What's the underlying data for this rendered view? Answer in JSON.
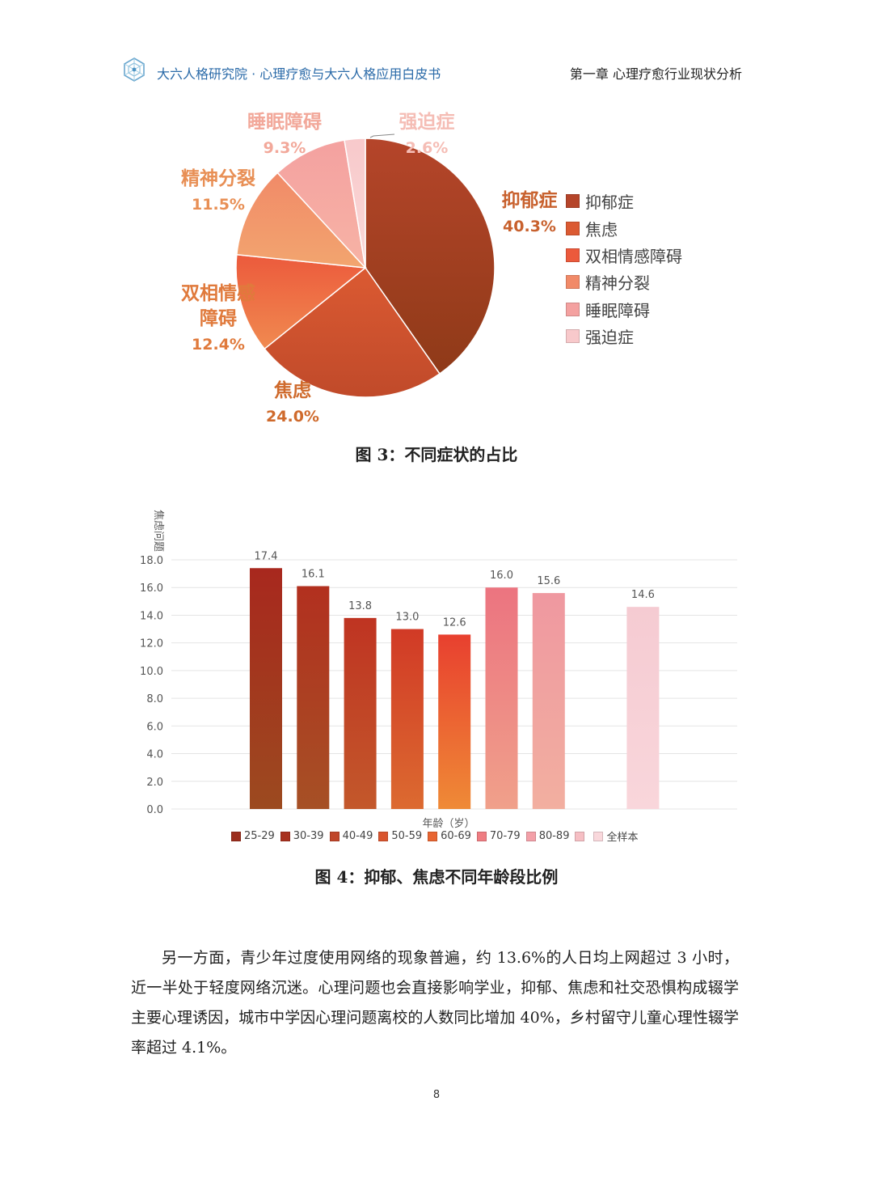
{
  "header": {
    "org_title": "大六人格研究院 · 心理疗愈与大六人格应用白皮书",
    "chapter_title": "第一章  心理疗愈行业现状分析",
    "logo_icon": "hexagon-network-logo-icon"
  },
  "pie_caption": "图 3：不同症状的占比",
  "bar_caption": "图 4：抑郁、焦虑不同年龄段比例",
  "body_paragraph": "另一方面，青少年过度使用网络的现象普遍，约 13.6%的人日均上网超过 3 小时，近一半处于轻度网络沉迷。心理问题也会直接影响学业，抑郁、焦虑和社交恐惧构成辍学主要心理诱因，城市中学因心理问题离校的人数同比增加 40%，乡村留守儿童心理性辍学率超过 4.1%。",
  "page_number": "8",
  "chart_data": [
    {
      "type": "pie",
      "title": "",
      "legend_position": "right",
      "slices": [
        {
          "name": "抑郁症",
          "label_lines": [
            "抑郁症"
          ],
          "value": 40.3,
          "pct_label": "40.3%",
          "color": "#b5452a",
          "color_dark": "#8f3a18",
          "label_color": "#c8612e"
        },
        {
          "name": "焦虑",
          "label_lines": [
            "焦虑"
          ],
          "value": 24.0,
          "pct_label": "24.0%",
          "color": "#db5a32",
          "color_dark": "#c04a2a",
          "label_color": "#cf6a2c"
        },
        {
          "name": "双相情感障碍",
          "label_lines": [
            "双相情感",
            "障碍"
          ],
          "value": 12.4,
          "pct_label": "12.4%",
          "color": "#ec5a3c",
          "color_dark": "#f08a50",
          "label_color": "#e07a3c"
        },
        {
          "name": "精神分裂",
          "label_lines": [
            "精神分裂"
          ],
          "value": 11.5,
          "pct_label": "11.5%",
          "color": "#f18a68",
          "color_dark": "#f2a56f",
          "label_color": "#e88f55"
        },
        {
          "name": "睡眠障碍",
          "label_lines": [
            "睡眠障碍"
          ],
          "value": 9.3,
          "pct_label": "9.3%",
          "color": "#f4a1a0",
          "color_dark": "#f7b3a5",
          "label_color": "#f2a89a"
        },
        {
          "name": "强迫症",
          "label_lines": [
            "强迫症"
          ],
          "value": 2.6,
          "pct_label": "2.6%",
          "color": "#f8c9cb",
          "color_dark": "#fad9d8",
          "label_color": "#f5bdb5"
        }
      ]
    },
    {
      "type": "bar",
      "title": "",
      "ylabel": "焦虑问题",
      "xlabel": "年龄（岁）",
      "ylim": [
        0,
        18
      ],
      "yticks": [
        "0.0",
        "2.0",
        "4.0",
        "6.0",
        "8.0",
        "10.0",
        "12.0",
        "14.0",
        "16.0",
        "18.0"
      ],
      "grid": true,
      "legend_position": "bottom",
      "categories": [
        "25-29",
        "30-39",
        "40-49",
        "50-59",
        "60-69",
        "70-79",
        "80-89",
        "",
        "全样本"
      ],
      "values": [
        17.4,
        16.1,
        13.8,
        13.0,
        12.6,
        16.0,
        15.6,
        null,
        14.6
      ],
      "value_labels": [
        "17.4",
        "16.1",
        "13.8",
        "13.0",
        "12.6",
        "16.0",
        "15.6",
        "",
        "14.6"
      ],
      "colors_top": [
        "#a8281e",
        "#b2301f",
        "#bf3422",
        "#d13a26",
        "#e8402f",
        "#ec7480",
        "#ef98a0",
        "",
        "#f5cbd2"
      ],
      "colors_bottom": [
        "#9c4a1f",
        "#a65025",
        "#c3582b",
        "#dc6a30",
        "#ef8a36",
        "#f0a08a",
        "#f2afa0",
        "",
        "#f9d6db"
      ],
      "legend_colors": [
        "#9c2e1e",
        "#a8321f",
        "#c0462a",
        "#d9552e",
        "#e86532",
        "#ef7d82",
        "#f3a0a8",
        "#f6bfc4",
        "#f9d8dc"
      ]
    }
  ]
}
